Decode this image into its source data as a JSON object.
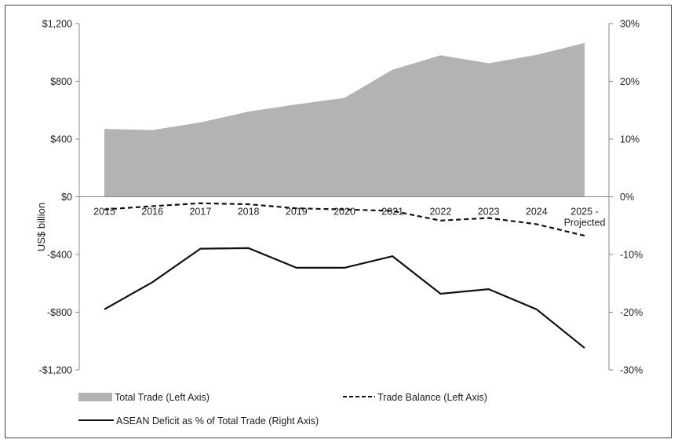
{
  "chart_data": {
    "type": "area+line",
    "categories": [
      "2015",
      "2016",
      "2017",
      "2018",
      "2019",
      "2020",
      "2021",
      "2022",
      "2023",
      "2024",
      "2025 -",
      "Projected"
    ],
    "x": [
      "2015",
      "2016",
      "2017",
      "2018",
      "2019",
      "2020",
      "2021",
      "2022",
      "2023",
      "2024",
      "2025 - Projected"
    ],
    "ylabel": "US$ billion",
    "left_axis": {
      "ylim": [
        -1200,
        1200
      ],
      "ticks": [
        1200,
        800,
        400,
        0,
        -400,
        -800,
        -1200
      ],
      "tick_labels": [
        "$1,200",
        "$800",
        "$400",
        "$0",
        "-$400",
        "-$800",
        "-$1,200"
      ]
    },
    "right_axis": {
      "ylim": [
        -30,
        30
      ],
      "ticks": [
        30,
        20,
        10,
        0,
        -10,
        -20,
        -30
      ],
      "tick_labels": [
        "30%",
        "20%",
        "10%",
        "0%",
        "-10%",
        "-20%",
        "-30%"
      ]
    },
    "series": [
      {
        "name": "Total Trade (Left Axis)",
        "type": "area",
        "axis": "left",
        "color": "#b3b3b3",
        "values": [
          470,
          462,
          515,
          590,
          640,
          685,
          880,
          980,
          925,
          983,
          1065
        ]
      },
      {
        "name": "Trade Balance (Left Axis)",
        "type": "line",
        "style": "dashed",
        "axis": "left",
        "color": "#111111",
        "values": [
          -88,
          -65,
          -45,
          -52,
          -80,
          -88,
          -98,
          -165,
          -147,
          -190,
          -270
        ]
      },
      {
        "name": "ASEAN Deficit as % of Total Trade (Right Axis)",
        "type": "line",
        "style": "solid",
        "axis": "right",
        "color": "#111111",
        "values": [
          -19.5,
          -14.8,
          -9.0,
          -8.9,
          -12.3,
          -12.3,
          -10.3,
          -16.8,
          -16.0,
          -19.5,
          -26.2
        ]
      }
    ],
    "legend": [
      "Total Trade (Left Axis)",
      "Trade Balance (Left Axis)",
      "ASEAN Deficit as % of Total Trade (Right Axis)"
    ],
    "legend_position": "bottom"
  }
}
